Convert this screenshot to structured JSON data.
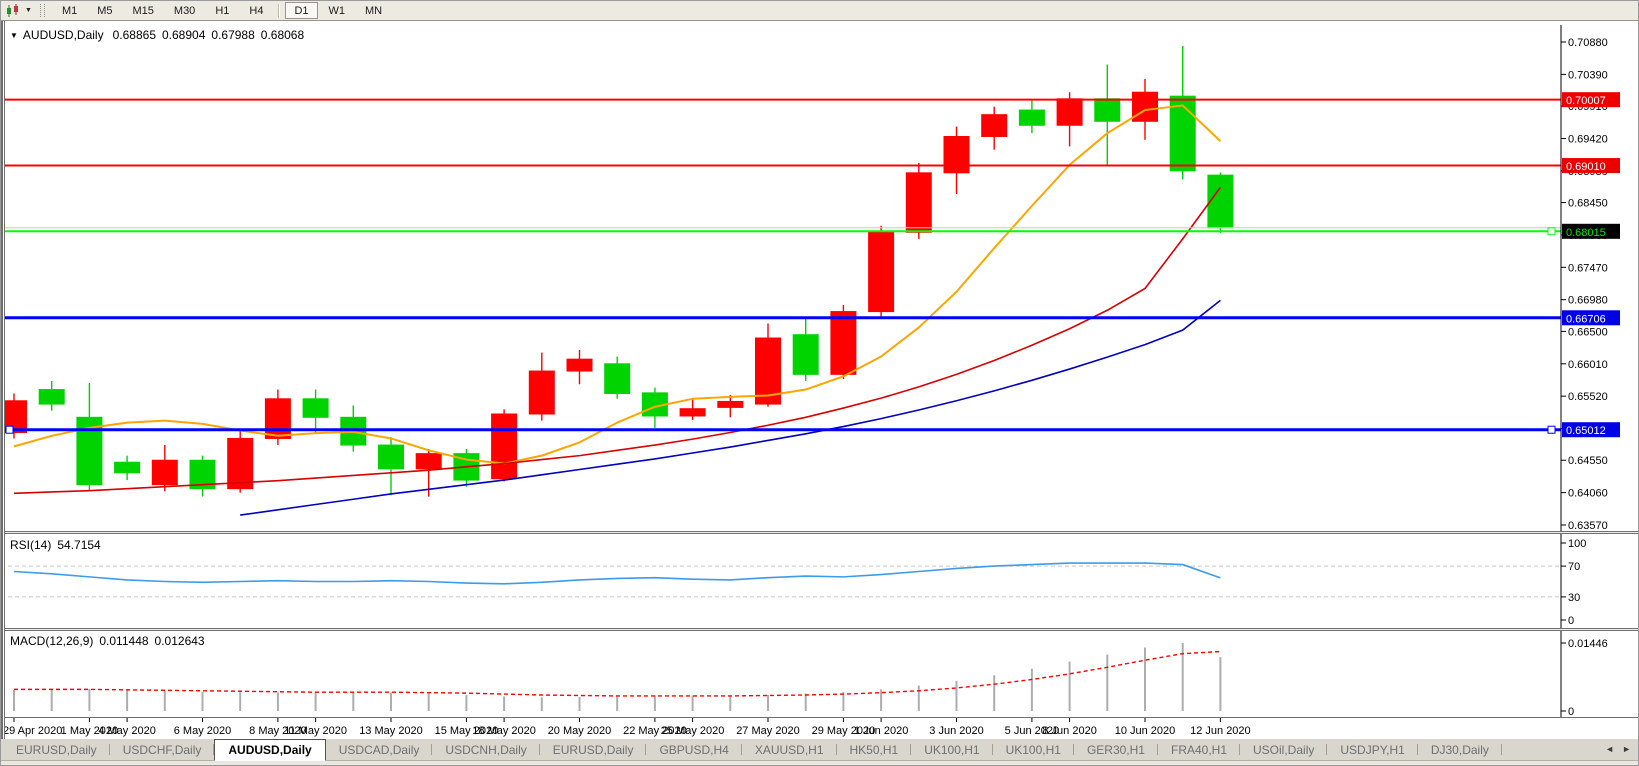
{
  "toolbar": {
    "new_chart_icon": "candlestick-chart",
    "dropdown_arrow": "▼",
    "timeframes": [
      {
        "label": "M1",
        "active": false
      },
      {
        "label": "M5",
        "active": false
      },
      {
        "label": "M15",
        "active": false
      },
      {
        "label": "M30",
        "active": false
      },
      {
        "label": "H1",
        "active": false
      },
      {
        "label": "H4",
        "active": false
      },
      {
        "label": "D1",
        "active": true
      },
      {
        "label": "W1",
        "active": false
      },
      {
        "label": "MN",
        "active": false
      }
    ]
  },
  "chart": {
    "title": {
      "collapse_arrow": "▼",
      "symbol": "AUDUSD,Daily",
      "open": "0.68865",
      "high": "0.68904",
      "low": "0.67988",
      "close": "0.68068"
    },
    "price_axis_ticks": [
      "0.70880",
      "0.70390",
      "0.69910",
      "0.69420",
      "0.68930",
      "0.68450",
      "0.67960",
      "0.67470",
      "0.66980",
      "0.66500",
      "0.66010",
      "0.65520",
      "0.65030",
      "0.64550",
      "0.64060",
      "0.63570"
    ]
  },
  "chart_data": {
    "type": "candlestick",
    "symbol": "AUDUSD",
    "timeframe": "Daily",
    "price_range": [
      0.6357,
      0.7088
    ],
    "candle_colors": {
      "up": "#FF0000",
      "down": "#00D400"
    },
    "candles": [
      [
        0.6497,
        0.6556,
        0.6488,
        0.6545
      ],
      [
        0.6562,
        0.6575,
        0.653,
        0.654
      ],
      [
        0.652,
        0.6572,
        0.6408,
        0.6418
      ],
      [
        0.6452,
        0.6462,
        0.6425,
        0.6436
      ],
      [
        0.6418,
        0.6478,
        0.6408,
        0.6455
      ],
      [
        0.6455,
        0.6462,
        0.64,
        0.6412
      ],
      [
        0.6412,
        0.65,
        0.6406,
        0.6488
      ],
      [
        0.6488,
        0.6562,
        0.6478,
        0.6548
      ],
      [
        0.6548,
        0.6562,
        0.6495,
        0.652
      ],
      [
        0.652,
        0.6538,
        0.6468,
        0.6478
      ],
      [
        0.6478,
        0.649,
        0.6402,
        0.6442
      ],
      [
        0.6442,
        0.6472,
        0.64,
        0.6465
      ],
      [
        0.6465,
        0.6472,
        0.6415,
        0.6425
      ],
      [
        0.6427,
        0.6532,
        0.6423,
        0.6525
      ],
      [
        0.6525,
        0.6618,
        0.6515,
        0.659
      ],
      [
        0.659,
        0.6622,
        0.657,
        0.6608
      ],
      [
        0.6601,
        0.6612,
        0.6548,
        0.6556
      ],
      [
        0.6557,
        0.6565,
        0.6504,
        0.6522
      ],
      [
        0.6522,
        0.6548,
        0.6516,
        0.6533
      ],
      [
        0.6535,
        0.6554,
        0.652,
        0.6544
      ],
      [
        0.654,
        0.6662,
        0.6536,
        0.664
      ],
      [
        0.6645,
        0.6672,
        0.6575,
        0.6585
      ],
      [
        0.6585,
        0.669,
        0.6578,
        0.668
      ],
      [
        0.668,
        0.681,
        0.6672,
        0.68
      ],
      [
        0.68,
        0.6905,
        0.679,
        0.689
      ],
      [
        0.689,
        0.696,
        0.6858,
        0.6945
      ],
      [
        0.6945,
        0.699,
        0.6925,
        0.6978
      ],
      [
        0.6985,
        0.7,
        0.695,
        0.6962
      ],
      [
        0.6962,
        0.7012,
        0.693,
        0.7002
      ],
      [
        0.7002,
        0.7054,
        0.6902,
        0.6968
      ],
      [
        0.6968,
        0.7032,
        0.694,
        0.7012
      ],
      [
        0.7006,
        0.7082,
        0.688,
        0.6893
      ],
      [
        0.68865,
        0.68904,
        0.67988,
        0.68068
      ]
    ],
    "date_labels": [
      "29 Apr 2020",
      "1 May 2020",
      "4 May 2020",
      "6 May 2020",
      "8 May 2020",
      "11 May 2020",
      "13 May 2020",
      "15 May 2020",
      "18 May 2020",
      "20 May 2020",
      "22 May 2020",
      "25 May 2020",
      "27 May 2020",
      "29 May 2020",
      "1 Jun 2020",
      "3 Jun 2020",
      "5 Jun 2020",
      "8 Jun 2020",
      "10 Jun 2020",
      "12 Jun 2020"
    ],
    "date_label_candle_index": [
      0,
      2,
      3,
      5,
      7,
      8,
      10,
      12,
      13,
      15,
      17,
      18,
      20,
      22,
      23,
      25,
      27,
      28,
      30,
      32
    ],
    "moving_averages": [
      {
        "name": "fast",
        "color": "#FFA500",
        "width": 2,
        "values": [
          0.6476,
          0.6492,
          0.6504,
          0.6512,
          0.6515,
          0.651,
          0.65,
          0.6492,
          0.6496,
          0.6498,
          0.6488,
          0.647,
          0.6456,
          0.645,
          0.6462,
          0.6482,
          0.6512,
          0.6536,
          0.6548,
          0.6551,
          0.6553,
          0.6562,
          0.6582,
          0.6612,
          0.6656,
          0.671,
          0.6776,
          0.684,
          0.6902,
          0.695,
          0.6985,
          0.6992,
          0.6938
        ]
      },
      {
        "name": "medium",
        "color": "#D80000",
        "width": 1.6,
        "values": [
          0.6405,
          0.6407,
          0.6409,
          0.6412,
          0.6415,
          0.6418,
          0.6421,
          0.6424,
          0.6428,
          0.6432,
          0.6436,
          0.644,
          0.6445,
          0.645,
          0.6456,
          0.6462,
          0.647,
          0.6478,
          0.6487,
          0.6497,
          0.6508,
          0.652,
          0.6534,
          0.6549,
          0.6566,
          0.6585,
          0.6606,
          0.6629,
          0.6654,
          0.6682,
          0.6715,
          0.679,
          0.6868
        ]
      },
      {
        "name": "slow",
        "color": "#0000BE",
        "width": 1.6,
        "values": [
          null,
          null,
          null,
          null,
          null,
          null,
          0.6372,
          0.638,
          0.6388,
          0.6396,
          0.6404,
          0.6411,
          0.6418,
          0.6425,
          0.6433,
          0.6441,
          0.6449,
          0.6457,
          0.6466,
          0.6475,
          0.6485,
          0.6495,
          0.6506,
          0.6518,
          0.6531,
          0.6545,
          0.656,
          0.6576,
          0.6593,
          0.6611,
          0.663,
          0.6652,
          0.6697
        ]
      }
    ],
    "horizontal_lines": [
      {
        "price": 0.68068,
        "label": "",
        "color": "#C8C8C8",
        "thickness": 1
      },
      {
        "price": 0.70007,
        "label": "0.70007",
        "color": "#FF0000",
        "badge_bg": "#EC0000",
        "badge_fg": "#FFFFFF",
        "thickness": 2
      },
      {
        "price": 0.6901,
        "label": "0.69010",
        "color": "#FF0000",
        "badge_bg": "#EC0000",
        "badge_fg": "#FFFFFF",
        "thickness": 2
      },
      {
        "price": 0.68015,
        "label": "0.68015",
        "color": "#00FF00",
        "badge_bg": "#000000",
        "badge_fg": "#00E400",
        "thickness": 2,
        "anchor_right": true
      },
      {
        "price": 0.66706,
        "label": "0.66706",
        "color": "#0000FF",
        "badge_bg": "#0000E6",
        "badge_fg": "#FFFFFF",
        "thickness": 3
      },
      {
        "price": 0.65012,
        "label": "0.65012",
        "color": "#0000FF",
        "badge_bg": "#0000E6",
        "badge_fg": "#FFFFFF",
        "thickness": 3,
        "anchor_left": true,
        "anchor_right": true
      }
    ],
    "indicators": [
      {
        "name": "RSI",
        "name_label": "RSI(14)",
        "value_label": "54.7154",
        "color": "#3D9BE9",
        "levels": [
          70,
          30
        ],
        "range": [
          0,
          100
        ],
        "axis_ticks": [
          "100",
          "70",
          "30",
          "0"
        ],
        "values": [
          63,
          60,
          56,
          52,
          50,
          49,
          50,
          51,
          50,
          50,
          51,
          50,
          48,
          47,
          49,
          52,
          54,
          55,
          53,
          52,
          55,
          57,
          56,
          59,
          63,
          67,
          70,
          72,
          74,
          74,
          74,
          72,
          54.7
        ]
      },
      {
        "name": "MACD",
        "name_label": "MACD(12,26,9)",
        "value1": "0.011448",
        "value2": "0.012643",
        "histogram_color": "#ADADAD",
        "signal_color": "#FF0000",
        "range": [
          0,
          0.01446
        ],
        "axis_ticks": [
          "0.01446",
          "0"
        ],
        "histogram": [
          0.0045,
          0.0046,
          0.0047,
          0.0045,
          0.0043,
          0.0041,
          0.004,
          0.0039,
          0.004,
          0.004,
          0.0039,
          0.0037,
          0.0034,
          0.0031,
          0.0029,
          0.003,
          0.0032,
          0.0033,
          0.0033,
          0.0032,
          0.0034,
          0.0037,
          0.004,
          0.0046,
          0.0054,
          0.0064,
          0.0076,
          0.009,
          0.0105,
          0.012,
          0.0135,
          0.01446,
          0.011448
        ],
        "signal": [
          0.0046,
          0.0046,
          0.0046,
          0.0045,
          0.0044,
          0.0043,
          0.0042,
          0.0041,
          0.004,
          0.004,
          0.004,
          0.0039,
          0.0038,
          0.0036,
          0.0034,
          0.0033,
          0.0032,
          0.0032,
          0.0032,
          0.0032,
          0.0033,
          0.0034,
          0.0036,
          0.0039,
          0.0043,
          0.0049,
          0.0057,
          0.0067,
          0.0079,
          0.0093,
          0.0108,
          0.0122,
          0.012643
        ]
      }
    ]
  },
  "tabs": {
    "nav_left": "◄",
    "nav_right": "►",
    "items": [
      {
        "label": "EURUSD,Daily",
        "active": false
      },
      {
        "label": "USDCHF,Daily",
        "active": false
      },
      {
        "label": "AUDUSD,Daily",
        "active": true
      },
      {
        "label": "USDCAD,Daily",
        "active": false
      },
      {
        "label": "USDCNH,Daily",
        "active": false
      },
      {
        "label": "EURUSD,Daily",
        "active": false
      },
      {
        "label": "GBPUSD,H4",
        "active": false
      },
      {
        "label": "XAUUSD,H1",
        "active": false
      },
      {
        "label": "HK50,H1",
        "active": false
      },
      {
        "label": "UK100,H1",
        "active": false
      },
      {
        "label": "UK100,H1",
        "active": false
      },
      {
        "label": "GER30,H1",
        "active": false
      },
      {
        "label": "FRA40,H1",
        "active": false
      },
      {
        "label": "USOil,Daily",
        "active": false
      },
      {
        "label": "USDJPY,H1",
        "active": false
      },
      {
        "label": "DJ30,Daily",
        "active": false
      }
    ]
  }
}
